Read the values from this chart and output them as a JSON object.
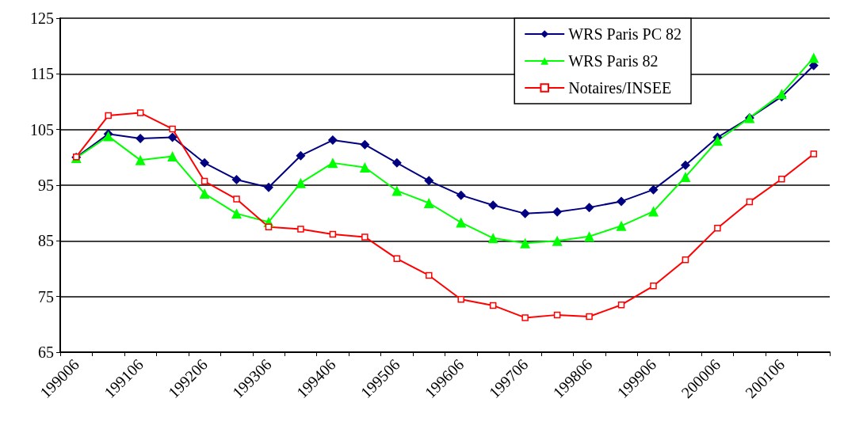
{
  "chart_data": {
    "type": "line",
    "categories": [
      "199006",
      null,
      "199106",
      null,
      "199206",
      null,
      "199306",
      null,
      "199406",
      null,
      "199506",
      null,
      "199606",
      null,
      "199706",
      null,
      "199806",
      null,
      "199906",
      null,
      "200006",
      null,
      "200106",
      null
    ],
    "series": [
      {
        "name": "WRS Paris PC 82",
        "color": "#000080",
        "marker": "diamond",
        "values": [
          100,
          104.2,
          103.4,
          103.6,
          99,
          96,
          94.6,
          100.3,
          103.1,
          102.3,
          99,
          95.8,
          93.2,
          91.4,
          89.9,
          90.2,
          91,
          92.1,
          94.2,
          98.6,
          103.6,
          107.1,
          110.9,
          116.5
        ]
      },
      {
        "name": "WRS Paris 82",
        "color": "#00ff00",
        "marker": "triangle",
        "values": [
          99.9,
          103.8,
          99.5,
          100.2,
          93.5,
          89.9,
          88.4,
          95.4,
          99,
          98.2,
          94,
          91.8,
          88.3,
          85.5,
          84.6,
          85,
          85.8,
          87.7,
          90.3,
          96.5,
          103,
          107.1,
          111.4,
          117.9
        ]
      },
      {
        "name": "Notaires/INSEE",
        "color": "#ff0000",
        "marker": "square",
        "values": [
          100.1,
          107.5,
          108,
          105.1,
          95.7,
          92.5,
          87.5,
          87.1,
          86.2,
          85.7,
          81.8,
          78.8,
          74.5,
          73.4,
          71.2,
          71.7,
          71.4,
          73.5,
          76.9,
          81.6,
          87.3,
          92,
          96.1,
          100.6
        ]
      }
    ],
    "ylim": [
      65,
      125
    ],
    "yticks": [
      65,
      75,
      85,
      95,
      105,
      115,
      125
    ],
    "grid": "y",
    "legend": "top right",
    "line_style": "solid"
  }
}
